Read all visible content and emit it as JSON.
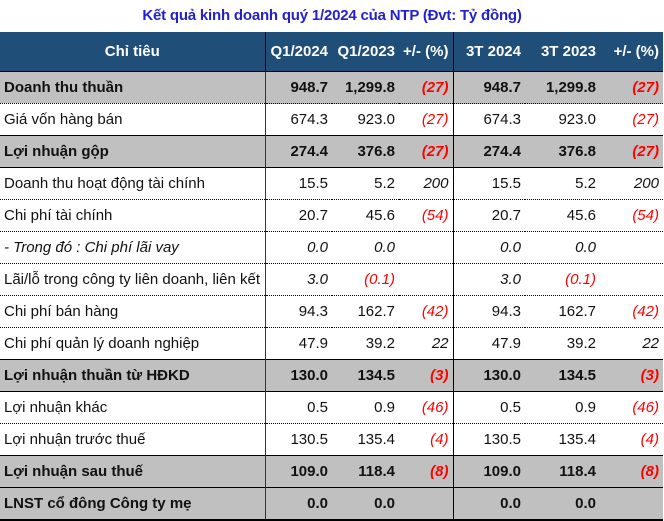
{
  "title": "Kết quả kinh doanh quý 1/2024 của NTP (Đvt: Tỷ đồng)",
  "colors": {
    "title": "#2222cc",
    "header_bg": "#1f4e79",
    "header_text": "#ffffff",
    "highlight_row_bg": "#c0c0c0",
    "negative": "#ff0000"
  },
  "table": {
    "headers": {
      "name": "Chỉ tiêu",
      "q1_2024": "Q1/2024",
      "q1_2023": "Q1/2023",
      "q1_pct": "+/- (%)",
      "t3_2024": "3T 2024",
      "t3_2023": "3T 2023",
      "t3_pct": "+/- (%)"
    },
    "rows": [
      {
        "name": "Doanh thu thuần",
        "q1_2024": "948.7",
        "q1_2023": "1,299.8",
        "q1_pct": "(27)",
        "t3_2024": "948.7",
        "t3_2023": "1,299.8",
        "t3_pct": "(27)",
        "bold": true
      },
      {
        "name": "Giá vốn hàng bán",
        "q1_2024": "674.3",
        "q1_2023": "923.0",
        "q1_pct": "(27)",
        "t3_2024": "674.3",
        "t3_2023": "923.0",
        "t3_pct": "(27)",
        "bold": false
      },
      {
        "name": "Lợi nhuận gộp",
        "q1_2024": "274.4",
        "q1_2023": "376.8",
        "q1_pct": "(27)",
        "t3_2024": "274.4",
        "t3_2023": "376.8",
        "t3_pct": "(27)",
        "bold": true
      },
      {
        "name": "Doanh thu hoạt động tài chính",
        "q1_2024": "15.5",
        "q1_2023": "5.2",
        "q1_pct": "200",
        "t3_2024": "15.5",
        "t3_2023": "5.2",
        "t3_pct": "200",
        "bold": false
      },
      {
        "name": "Chi phí tài chính",
        "q1_2024": "20.7",
        "q1_2023": "45.6",
        "q1_pct": "(54)",
        "t3_2024": "20.7",
        "t3_2023": "45.6",
        "t3_pct": "(54)",
        "bold": false
      },
      {
        "name": "- Trong đó : Chi phí lãi vay",
        "q1_2024": "0.0",
        "q1_2023": "0.0",
        "q1_pct": "",
        "t3_2024": "0.0",
        "t3_2023": "0.0",
        "t3_pct": "",
        "bold": false,
        "italic": true
      },
      {
        "name": "Lãi/lỗ trong công ty liên doanh, liên kết",
        "q1_2024": "3.0",
        "q1_2023": "(0.1)",
        "q1_pct": "",
        "t3_2024": "3.0",
        "t3_2023": "(0.1)",
        "t3_pct": "",
        "bold": false,
        "italic_values": true
      },
      {
        "name": "Chi phí bán hàng",
        "q1_2024": "94.3",
        "q1_2023": "162.7",
        "q1_pct": "(42)",
        "t3_2024": "94.3",
        "t3_2023": "162.7",
        "t3_pct": "(42)",
        "bold": false
      },
      {
        "name": "Chi phí quản lý doanh nghiệp",
        "q1_2024": "47.9",
        "q1_2023": "39.2",
        "q1_pct": "22",
        "t3_2024": "47.9",
        "t3_2023": "39.2",
        "t3_pct": "22",
        "bold": false
      },
      {
        "name": "Lợi nhuận thuần từ HĐKD",
        "q1_2024": "130.0",
        "q1_2023": "134.5",
        "q1_pct": "(3)",
        "t3_2024": "130.0",
        "t3_2023": "134.5",
        "t3_pct": "(3)",
        "bold": true
      },
      {
        "name": "Lợi nhuận khác",
        "q1_2024": "0.5",
        "q1_2023": "0.9",
        "q1_pct": "(46)",
        "t3_2024": "0.5",
        "t3_2023": "0.9",
        "t3_pct": "(46)",
        "bold": false
      },
      {
        "name": "Lợi nhuận trước thuế",
        "q1_2024": "130.5",
        "q1_2023": "135.4",
        "q1_pct": "(4)",
        "t3_2024": "130.5",
        "t3_2023": "135.4",
        "t3_pct": "(4)",
        "bold": false
      },
      {
        "name": "Lợi nhuận sau thuế",
        "q1_2024": "109.0",
        "q1_2023": "118.4",
        "q1_pct": "(8)",
        "t3_2024": "109.0",
        "t3_2023": "118.4",
        "t3_pct": "(8)",
        "bold": true
      },
      {
        "name": "LNST cổ đông Công ty mẹ",
        "q1_2024": "0.0",
        "q1_2023": "0.0",
        "q1_pct": "",
        "t3_2024": "0.0",
        "t3_2023": "0.0",
        "t3_pct": "",
        "bold": true
      }
    ]
  }
}
